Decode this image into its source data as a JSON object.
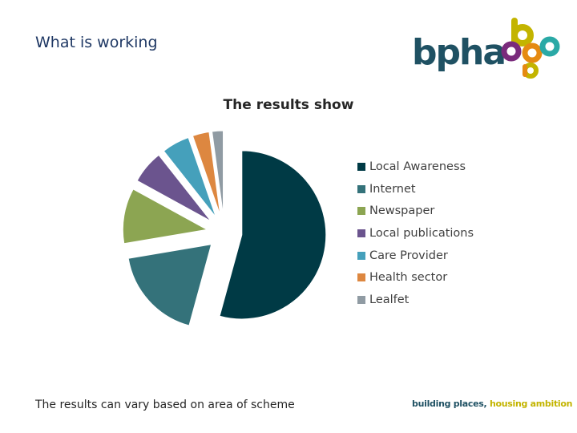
{
  "slide": {
    "title": "What is working",
    "footer_note": "The results can vary based on area of scheme"
  },
  "logo": {
    "text": "bpha",
    "tagline_part1": "building places, ",
    "tagline_part2": "housing ambition",
    "colors": {
      "dark": "#1f5163",
      "yellow": "#c3b400",
      "purple": "#7a2b7c",
      "orange": "#e58a12",
      "teal": "#2aa9a6"
    }
  },
  "chart_data": {
    "type": "pie",
    "title": "The results show",
    "exploded": true,
    "legend_position": "right",
    "series": [
      {
        "name": "",
        "categories": [
          "Local Awareness",
          "Internet",
          "Newspaper",
          "Local publications",
          "Care Provider",
          "Health sector",
          "Lealfet"
        ],
        "values": [
          51,
          17,
          10,
          6,
          5,
          3,
          2
        ],
        "colors": [
          "#003a45",
          "#34727a",
          "#8ca552",
          "#6b548e",
          "#45a0bb",
          "#dd8740",
          "#909ba3"
        ]
      }
    ]
  }
}
